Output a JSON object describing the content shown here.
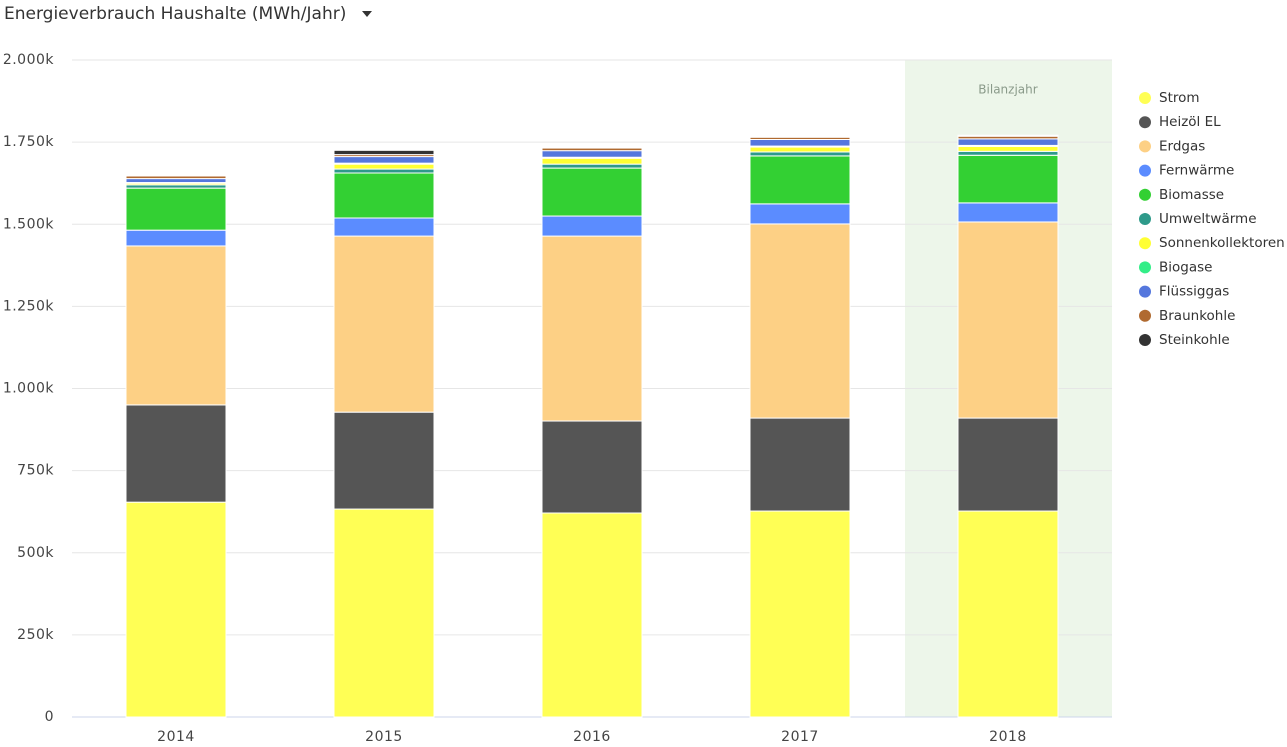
{
  "chart_data": {
    "type": "stacked-bar",
    "title": "Energieverbrauch Haushalte (MWh/Jahr)",
    "categories": [
      "2014",
      "2015",
      "2016",
      "2017",
      "2018"
    ],
    "highlight": {
      "category": 4,
      "label": "Bilanzjahr",
      "color": "#edf6ea"
    },
    "series": [
      {
        "name": "Strom",
        "color": "#ffff55",
        "values": [
          654000,
          633000,
          621000,
          627000,
          627000
        ]
      },
      {
        "name": "Heizöl EL",
        "color": "#555555",
        "values": [
          296000,
          295000,
          280000,
          283000,
          283000
        ]
      },
      {
        "name": "Erdgas",
        "color": "#fdd085",
        "values": [
          484000,
          536000,
          563000,
          591000,
          597000
        ]
      },
      {
        "name": "Fernwärme",
        "color": "#5b8cff",
        "values": [
          48000,
          55000,
          61000,
          61000,
          58000
        ]
      },
      {
        "name": "Biomasse",
        "color": "#33d033",
        "values": [
          128000,
          137000,
          146000,
          146000,
          145000
        ]
      },
      {
        "name": "Umweltwärme",
        "color": "#2e9a8a",
        "values": [
          10000,
          12000,
          12000,
          12000,
          12000
        ]
      },
      {
        "name": "Sonnenkollektoren",
        "color": "#ffff33",
        "values": [
          5000,
          15000,
          18000,
          15000,
          15000
        ]
      },
      {
        "name": "Biogase",
        "color": "#33ee88",
        "values": [
          2000,
          3000,
          3000,
          3000,
          3000
        ]
      },
      {
        "name": "Flüssiggas",
        "color": "#5577dd",
        "values": [
          12000,
          20000,
          20000,
          20000,
          20000
        ]
      },
      {
        "name": "Braunkohle",
        "color": "#b06a30",
        "values": [
          8000,
          6000,
          8000,
          7000,
          8000
        ]
      },
      {
        "name": "Steinkohle",
        "color": "#333333",
        "values": [
          3000,
          13000,
          3000,
          3000,
          3000
        ]
      }
    ],
    "ylim": [
      0,
      2000000
    ],
    "yticks": [
      0,
      {
        "value": 250000,
        "label": "250k"
      },
      {
        "value": 500000,
        "label": "500k"
      },
      {
        "value": 750000,
        "label": "750k"
      },
      {
        "value": 1000000,
        "label": "1.000k"
      },
      {
        "value": 1250000,
        "label": "1.250k"
      },
      {
        "value": 1500000,
        "label": "1.500k"
      },
      {
        "value": 1750000,
        "label": "1.750k"
      },
      {
        "value": 2000000,
        "label": "2.000k"
      }
    ],
    "grid": true,
    "legend": "right"
  }
}
